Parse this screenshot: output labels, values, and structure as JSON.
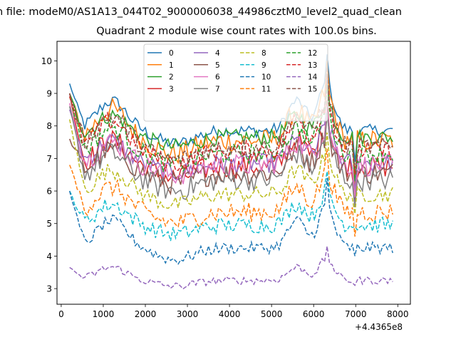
{
  "figure": {
    "suptitle": "n file: modeM0/AS1A13_044T02_9000006038_44986cztM0_level2_quad_clean",
    "x_offset_label": "+4.4365e8"
  },
  "chart_data": {
    "type": "line",
    "title": "Quadrant 2 module wise count rates with 100.0s bins.",
    "xlabel": "",
    "ylabel": "",
    "xlim": [
      -100,
      8300
    ],
    "ylim": [
      2.52,
      10.6
    ],
    "x_ticks": [
      0,
      1000,
      2000,
      3000,
      4000,
      5000,
      6000,
      7000,
      8000
    ],
    "x_tick_labels": [
      "0",
      "1000",
      "2000",
      "3000",
      "4000",
      "5000",
      "6000",
      "7000",
      "8000"
    ],
    "y_ticks": [
      3,
      4,
      5,
      6,
      7,
      8,
      9,
      10
    ],
    "y_tick_labels": [
      "3",
      "4",
      "5",
      "6",
      "7",
      "8",
      "9",
      "10"
    ],
    "x_start": 200,
    "x_step": 60,
    "n_points": 129,
    "legend": {
      "placement": "top-center",
      "ncol": 4
    },
    "series": [
      {
        "name": "0",
        "color": "#1f77b4",
        "dash": "solid",
        "base": 7.85,
        "amp": 0.2,
        "start": 9.3,
        "dip": 6.9,
        "peak": 10.2
      },
      {
        "name": "1",
        "color": "#ff7f0e",
        "dash": "solid",
        "base": 7.55,
        "amp": 0.35,
        "start": 9.0,
        "dip": 6.0,
        "peak": 10.0
      },
      {
        "name": "2",
        "color": "#2ca02c",
        "dash": "solid",
        "base": 7.65,
        "amp": 0.25,
        "start": 9.0,
        "dip": 6.3,
        "peak": 9.4
      },
      {
        "name": "3",
        "color": "#d62728",
        "dash": "solid",
        "base": 6.75,
        "amp": 0.35,
        "start": 9.0,
        "dip": 5.9,
        "peak": 8.8
      },
      {
        "name": "4",
        "color": "#9467bd",
        "dash": "solid",
        "base": 6.85,
        "amp": 0.3,
        "start": 8.5,
        "dip": 6.0,
        "peak": 8.6
      },
      {
        "name": "5",
        "color": "#8c564b",
        "dash": "solid",
        "base": 6.55,
        "amp": 0.35,
        "start": 7.6,
        "dip": 5.6,
        "peak": 8.4
      },
      {
        "name": "6",
        "color": "#e377c2",
        "dash": "solid",
        "base": 6.8,
        "amp": 0.35,
        "start": 8.7,
        "dip": 5.8,
        "peak": 8.6
      },
      {
        "name": "7",
        "color": "#7f7f7f",
        "dash": "solid",
        "base": 6.35,
        "amp": 0.35,
        "start": 8.6,
        "dip": 5.5,
        "peak": 8.4
      },
      {
        "name": "8",
        "color": "#bcbd22",
        "dash": "dashed",
        "base": 5.9,
        "amp": 0.25,
        "start": 8.2,
        "dip": 5.3,
        "peak": 7.8
      },
      {
        "name": "9",
        "color": "#17becf",
        "dash": "dashed",
        "base": 4.95,
        "amp": 0.25,
        "start": 6.0,
        "dip": 4.9,
        "peak": 6.6
      },
      {
        "name": "10",
        "color": "#1f77b4",
        "dash": "dashed",
        "base": 4.25,
        "amp": 0.18,
        "start": 6.0,
        "dip": 4.0,
        "peak": 6.4
      },
      {
        "name": "11",
        "color": "#ff7f0e",
        "dash": "dashed",
        "base": 5.35,
        "amp": 0.3,
        "start": 6.8,
        "dip": 4.6,
        "peak": 7.3
      },
      {
        "name": "12",
        "color": "#2ca02c",
        "dash": "dashed",
        "base": 7.15,
        "amp": 0.3,
        "start": 8.9,
        "dip": 6.4,
        "peak": 9.2
      },
      {
        "name": "13",
        "color": "#d62728",
        "dash": "dashed",
        "base": 7.25,
        "amp": 0.3,
        "start": 8.9,
        "dip": 6.5,
        "peak": 9.6
      },
      {
        "name": "14",
        "color": "#9467bd",
        "dash": "dashed",
        "base": 3.25,
        "amp": 0.12,
        "start": 3.65,
        "dip": 3.1,
        "peak": 4.3
      },
      {
        "name": "15",
        "color": "#8c564b",
        "dash": "dashed",
        "base": 7.35,
        "amp": 0.3,
        "start": 9.0,
        "dip": 6.7,
        "peak": 9.8
      }
    ]
  }
}
